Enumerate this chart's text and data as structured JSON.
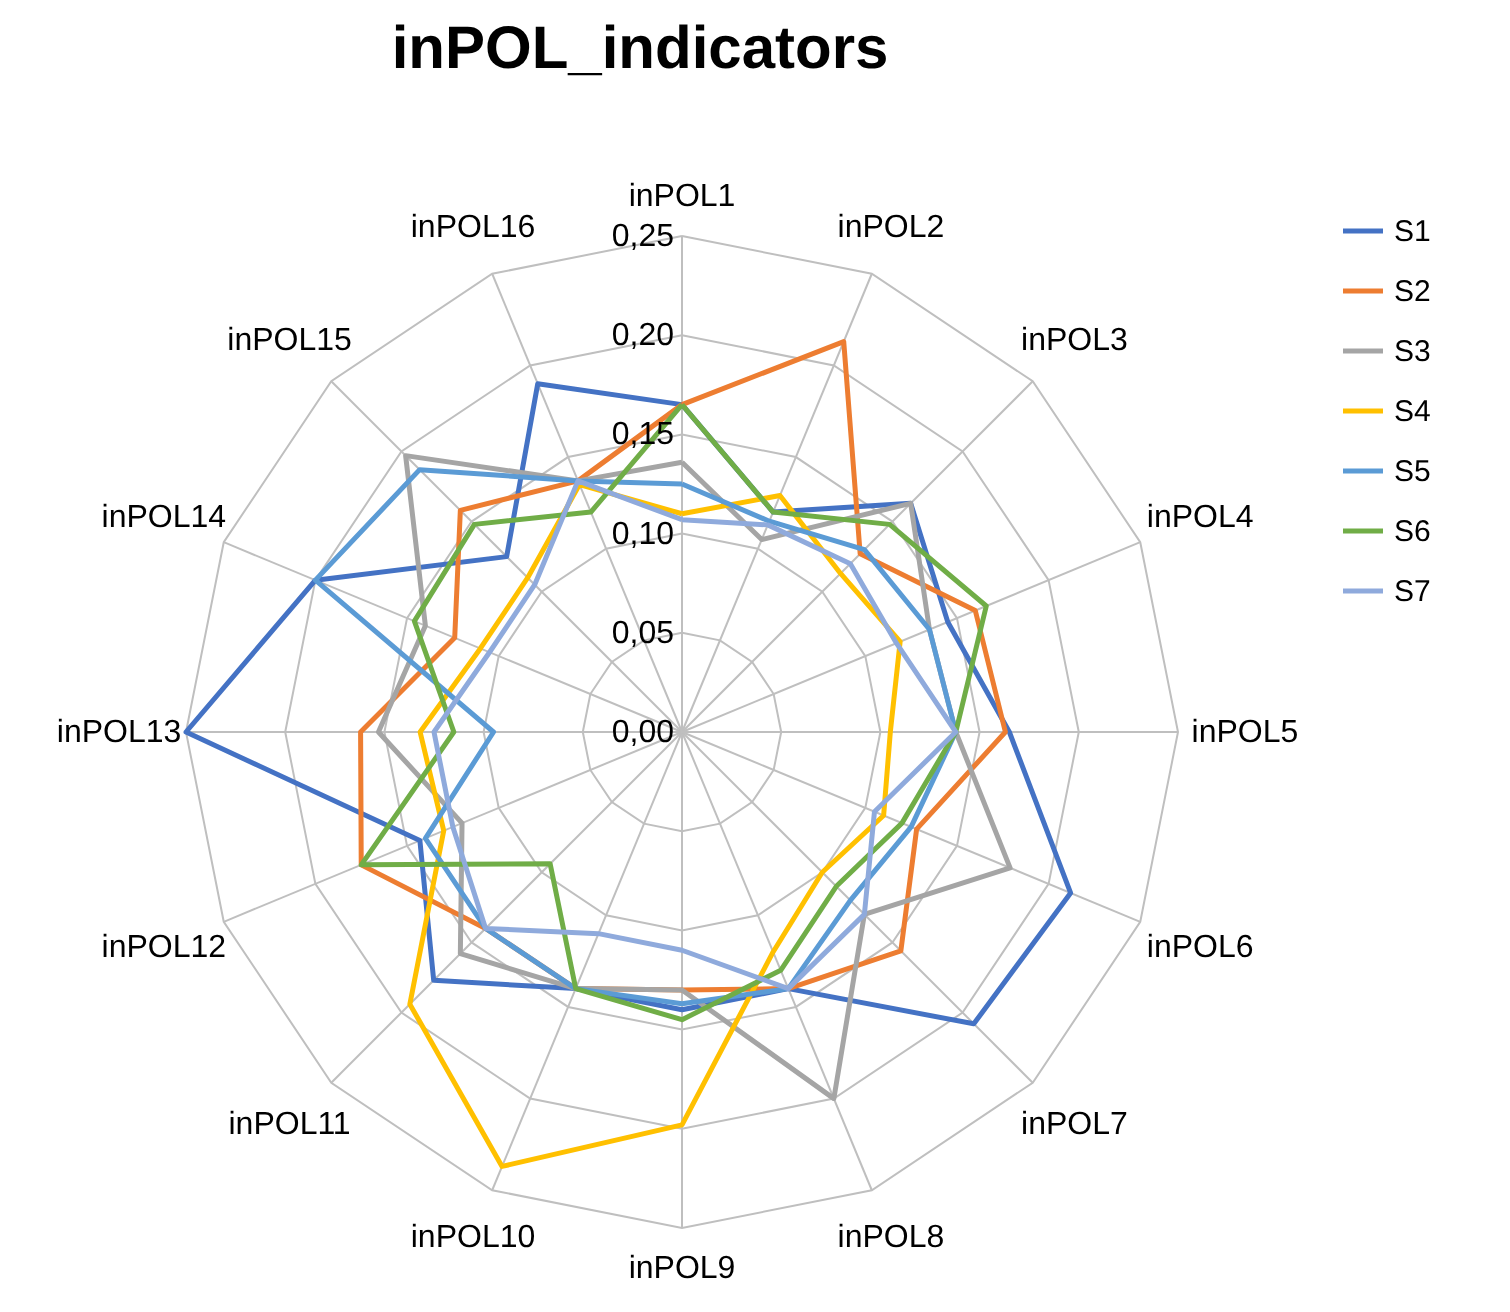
{
  "chart_data": {
    "type": "radar",
    "title": "inPOL_indicators",
    "categories": [
      "inPOL1",
      "inPOL2",
      "inPOL3",
      "inPOL4",
      "inPOL5",
      "inPOL6",
      "inPOL7",
      "inPOL8",
      "inPOL9",
      "inPOL10",
      "inPOL11",
      "inPOL12",
      "inPOL13",
      "inPOL14",
      "inPOL15",
      "inPOL16"
    ],
    "ylim": [
      0,
      0.25
    ],
    "yticks": [
      {
        "value": 0,
        "label": "0,00"
      },
      {
        "value": 0.05,
        "label": "0,05"
      },
      {
        "value": 0.1,
        "label": "0,10"
      },
      {
        "value": 0.15,
        "label": "0,15"
      },
      {
        "value": 0.2,
        "label": "0,20"
      },
      {
        "value": 0.25,
        "label": "0,25"
      }
    ],
    "grid": true,
    "legend": "right",
    "series": [
      {
        "name": "S1",
        "color": "#4472c4",
        "values": [
          0.165,
          0.12,
          0.163,
          0.145,
          0.165,
          0.212,
          0.208,
          0.14,
          0.14,
          0.14,
          0.177,
          0.143,
          0.25,
          0.2,
          0.125,
          0.19
        ]
      },
      {
        "name": "S2",
        "color": "#ed7d31",
        "values": [
          0.165,
          0.213,
          0.127,
          0.16,
          0.163,
          0.128,
          0.156,
          0.14,
          0.13,
          0.14,
          0.14,
          0.175,
          0.162,
          0.124,
          0.158,
          0.137
        ]
      },
      {
        "name": "S3",
        "color": "#a5a5a5",
        "values": [
          0.136,
          0.105,
          0.163,
          0.135,
          0.138,
          0.179,
          0.13,
          0.2,
          0.13,
          0.14,
          0.158,
          0.12,
          0.153,
          0.14,
          0.197,
          0.137
        ]
      },
      {
        "name": "S4",
        "color": "#ffc000",
        "values": [
          0.11,
          0.129,
          0.113,
          0.119,
          0.105,
          0.11,
          0.1,
          0.12,
          0.198,
          0.237,
          0.194,
          0.13,
          0.132,
          0.11,
          0.11,
          0.135
        ]
      },
      {
        "name": "S5",
        "color": "#5b9bd5",
        "values": [
          0.125,
          0.115,
          0.13,
          0.135,
          0.138,
          0.125,
          0.12,
          0.14,
          0.137,
          0.14,
          0.14,
          0.14,
          0.095,
          0.2,
          0.187,
          0.137
        ]
      },
      {
        "name": "S6",
        "color": "#70ad47",
        "values": [
          0.165,
          0.12,
          0.148,
          0.166,
          0.138,
          0.12,
          0.11,
          0.13,
          0.145,
          0.14,
          0.094,
          0.175,
          0.115,
          0.146,
          0.148,
          0.12
        ]
      },
      {
        "name": "S7",
        "color": "#8faadc",
        "values": [
          0.107,
          0.113,
          0.12,
          0.117,
          0.138,
          0.105,
          0.13,
          0.14,
          0.11,
          0.11,
          0.14,
          0.125,
          0.125,
          0.105,
          0.105,
          0.137
        ]
      }
    ]
  }
}
